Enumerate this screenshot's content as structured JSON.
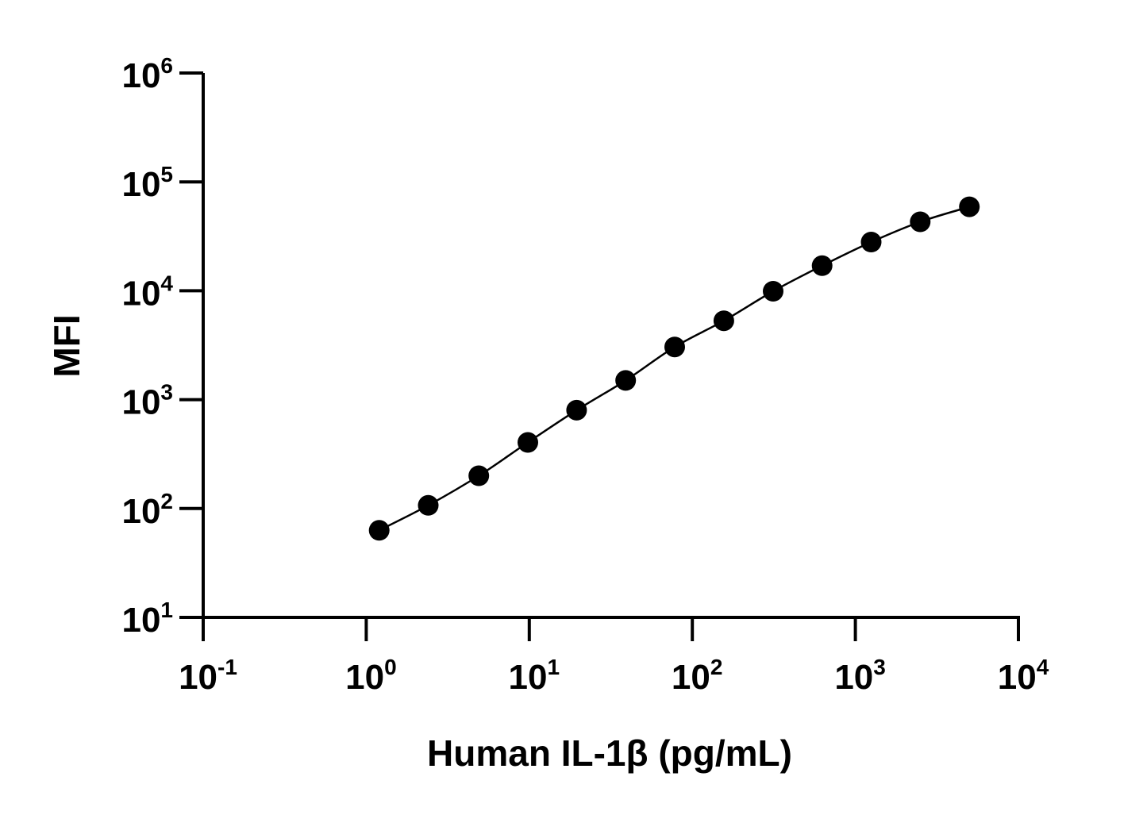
{
  "chart_data": {
    "type": "scatter",
    "xlabel": "Human IL-1β (pg/mL)",
    "ylabel": "MFI",
    "xscale": "log",
    "yscale": "log",
    "xlim": [
      0.1,
      10000
    ],
    "ylim": [
      10,
      1000000
    ],
    "grid": false,
    "x_ticks": [
      {
        "base": "10",
        "exp": "-1",
        "value": 0.1
      },
      {
        "base": "10",
        "exp": "0",
        "value": 1
      },
      {
        "base": "10",
        "exp": "1",
        "value": 10
      },
      {
        "base": "10",
        "exp": "2",
        "value": 100
      },
      {
        "base": "10",
        "exp": "3",
        "value": 1000
      },
      {
        "base": "10",
        "exp": "4",
        "value": 10000
      }
    ],
    "y_ticks": [
      {
        "base": "10",
        "exp": "1",
        "value": 10
      },
      {
        "base": "10",
        "exp": "2",
        "value": 100
      },
      {
        "base": "10",
        "exp": "3",
        "value": 1000
      },
      {
        "base": "10",
        "exp": "4",
        "value": 10000
      },
      {
        "base": "10",
        "exp": "5",
        "value": 100000
      },
      {
        "base": "10",
        "exp": "6",
        "value": 1000000
      }
    ],
    "series": [
      {
        "x": [
          1.2,
          2.4,
          4.9,
          9.8,
          19.5,
          39,
          78,
          156,
          313,
          625,
          1250,
          2500,
          5000
        ],
        "y": [
          63,
          107,
          200,
          405,
          800,
          1500,
          3050,
          5300,
          9900,
          17000,
          28000,
          43000,
          59000
        ],
        "marker": "circle",
        "color": "#000000",
        "fit_line": true
      }
    ]
  }
}
